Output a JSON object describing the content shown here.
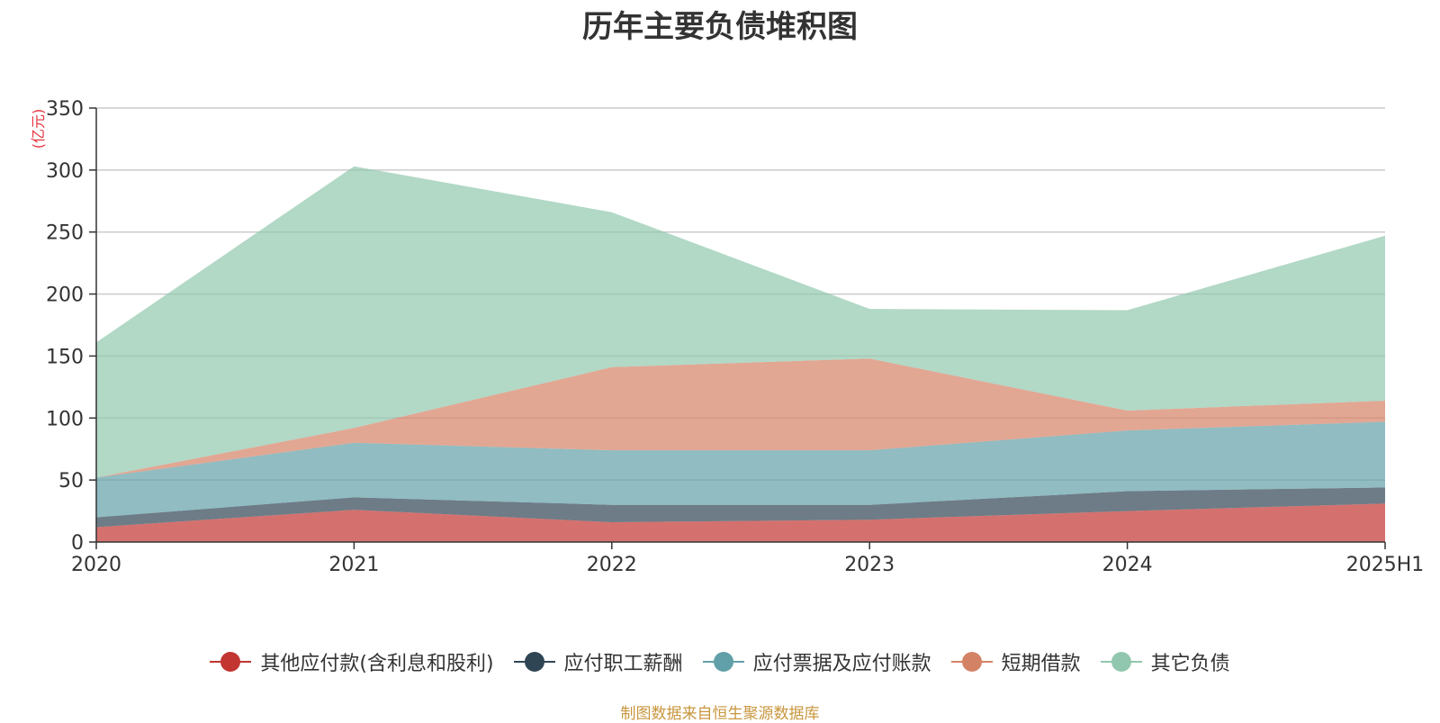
{
  "chart_data": {
    "type": "area",
    "stacked": true,
    "title": "历年主要负债堆积图",
    "unit_label": "(亿元)",
    "x": [
      "2020",
      "2021",
      "2022",
      "2023",
      "2024",
      "2025H1"
    ],
    "ylim": [
      0,
      350
    ],
    "yticks": [
      0,
      50,
      100,
      150,
      200,
      250,
      300,
      350
    ],
    "grid": true,
    "legend_position": "bottom",
    "series": [
      {
        "name": "其他应付款(含利息和股利)",
        "color": "#c23531",
        "values": [
          12,
          26,
          16,
          18,
          25,
          31
        ]
      },
      {
        "name": "应付职工薪酬",
        "color": "#2f4554",
        "values": [
          8,
          10,
          14,
          12,
          16,
          13
        ]
      },
      {
        "name": "应付票据及应付账款",
        "color": "#61a0a8",
        "values": [
          32,
          44,
          44,
          44,
          49,
          53
        ]
      },
      {
        "name": "短期借款",
        "color": "#d48265",
        "values": [
          0,
          12,
          67,
          74,
          16,
          17
        ]
      },
      {
        "name": "其它负债",
        "color": "#91c7ae",
        "values": [
          109,
          211,
          125,
          40,
          81,
          133
        ]
      }
    ]
  },
  "footer": {
    "source": "制图数据来自恒生聚源数据库"
  }
}
